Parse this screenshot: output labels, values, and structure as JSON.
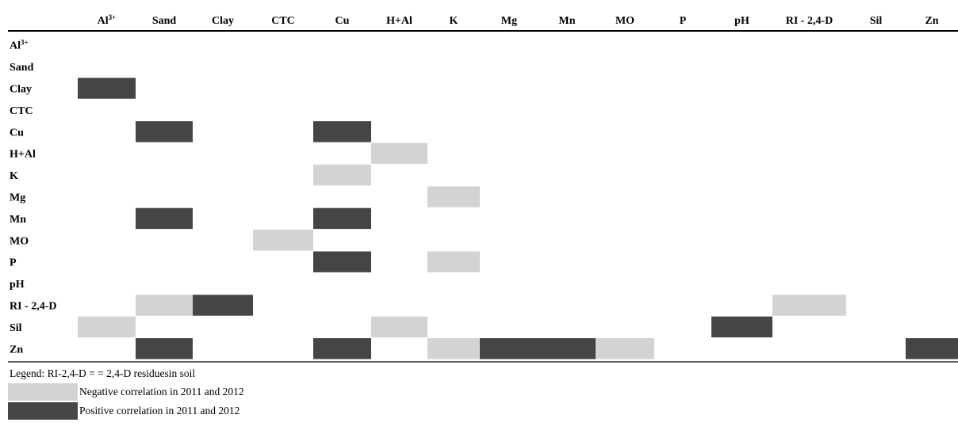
{
  "chart_data": {
    "type": "heatmap",
    "columns": [
      "Al3+",
      "Sand",
      "Clay",
      "CTC",
      "Cu",
      "H+Al",
      "K",
      "Mg",
      "Mn",
      "MO",
      "P",
      "pH",
      "RI - 2,4-D",
      "Sil",
      "Zn"
    ],
    "rows": [
      "Al3+",
      "Sand",
      "Clay",
      "CTC",
      "Cu",
      "H+Al",
      "K",
      "Mg",
      "Mn",
      "MO",
      "P",
      "pH",
      "RI - 2,4-D",
      "Sil",
      "Zn"
    ],
    "value_meaning": {
      "1": "Positive correlation in 2011 and 2012",
      "-1": "Negative correlation in 2011 and 2012",
      "0": "none"
    },
    "matrix": [
      [
        0,
        0,
        0,
        0,
        0,
        0,
        0,
        0,
        0,
        0,
        0,
        0,
        0,
        0,
        0
      ],
      [
        0,
        0,
        0,
        0,
        0,
        0,
        0,
        0,
        0,
        0,
        0,
        0,
        0,
        0,
        0
      ],
      [
        1,
        0,
        0,
        0,
        0,
        0,
        0,
        0,
        0,
        0,
        0,
        0,
        0,
        0,
        0
      ],
      [
        0,
        0,
        0,
        0,
        0,
        0,
        0,
        0,
        0,
        0,
        0,
        0,
        0,
        0,
        0
      ],
      [
        0,
        1,
        0,
        0,
        1,
        0,
        0,
        0,
        0,
        0,
        0,
        0,
        0,
        0,
        0
      ],
      [
        0,
        0,
        0,
        0,
        0,
        -1,
        0,
        0,
        0,
        0,
        0,
        0,
        0,
        0,
        0
      ],
      [
        0,
        0,
        0,
        0,
        -1,
        0,
        0,
        0,
        0,
        0,
        0,
        0,
        0,
        0,
        0
      ],
      [
        0,
        0,
        0,
        0,
        0,
        0,
        -1,
        0,
        0,
        0,
        0,
        0,
        0,
        0,
        0
      ],
      [
        0,
        1,
        0,
        0,
        1,
        0,
        0,
        0,
        0,
        0,
        0,
        0,
        0,
        0,
        0
      ],
      [
        0,
        0,
        0,
        -1,
        0,
        0,
        0,
        0,
        0,
        0,
        0,
        0,
        0,
        0,
        0
      ],
      [
        0,
        0,
        0,
        0,
        1,
        0,
        -1,
        0,
        0,
        0,
        0,
        0,
        0,
        0,
        0
      ],
      [
        0,
        0,
        0,
        0,
        0,
        0,
        0,
        0,
        0,
        0,
        0,
        0,
        0,
        0,
        0
      ],
      [
        0,
        -1,
        1,
        0,
        0,
        0,
        0,
        0,
        0,
        0,
        0,
        0,
        -1,
        0,
        0
      ],
      [
        -1,
        0,
        0,
        0,
        0,
        -1,
        0,
        0,
        0,
        0,
        0,
        1,
        0,
        0,
        0
      ],
      [
        0,
        1,
        0,
        0,
        1,
        0,
        -1,
        1,
        1,
        -1,
        0,
        0,
        0,
        0,
        1
      ]
    ],
    "colors": {
      "positive": "#454545",
      "negative": "#d3d3d3"
    }
  },
  "legend": {
    "note": "Legend: RI-2,4-D = = 2,4-D  residuesin soil",
    "negative_label": "Negative correlation in 2011 and 2012",
    "positive_label": "Positive correlation in 2011 and 2012"
  }
}
